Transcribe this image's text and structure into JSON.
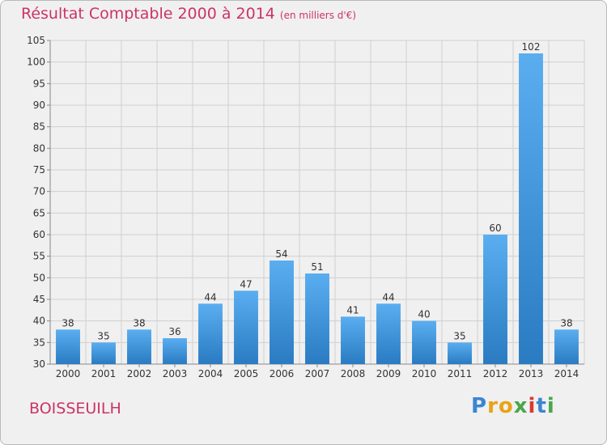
{
  "header": {
    "title": "Résultat Comptable 2000 à 2014",
    "subtitle": "(en milliers d'€)"
  },
  "footer": {
    "place": "BOISSEUILH",
    "brand": "Proxiti"
  },
  "colors": {
    "title": "#cc3366",
    "bar_top": "#5aaef0",
    "bar_bottom": "#2a7bc2",
    "grid": "#cfcfcf",
    "axis": "#888888",
    "background": "#f0f0f0"
  },
  "chart_data": {
    "type": "bar",
    "title": "Résultat Comptable 2000 à 2014",
    "unit": "(en milliers d'€)",
    "xlabel": "",
    "ylabel": "",
    "categories": [
      "2000",
      "2001",
      "2002",
      "2003",
      "2004",
      "2005",
      "2006",
      "2007",
      "2008",
      "2009",
      "2010",
      "2011",
      "2012",
      "2013",
      "2014"
    ],
    "values": [
      38,
      35,
      38,
      36,
      44,
      47,
      54,
      51,
      41,
      44,
      40,
      35,
      60,
      102,
      38
    ],
    "ylim": [
      30,
      105
    ],
    "yticks": [
      30,
      35,
      40,
      45,
      50,
      55,
      60,
      65,
      70,
      75,
      80,
      85,
      90,
      95,
      100,
      105
    ],
    "grid": true
  }
}
